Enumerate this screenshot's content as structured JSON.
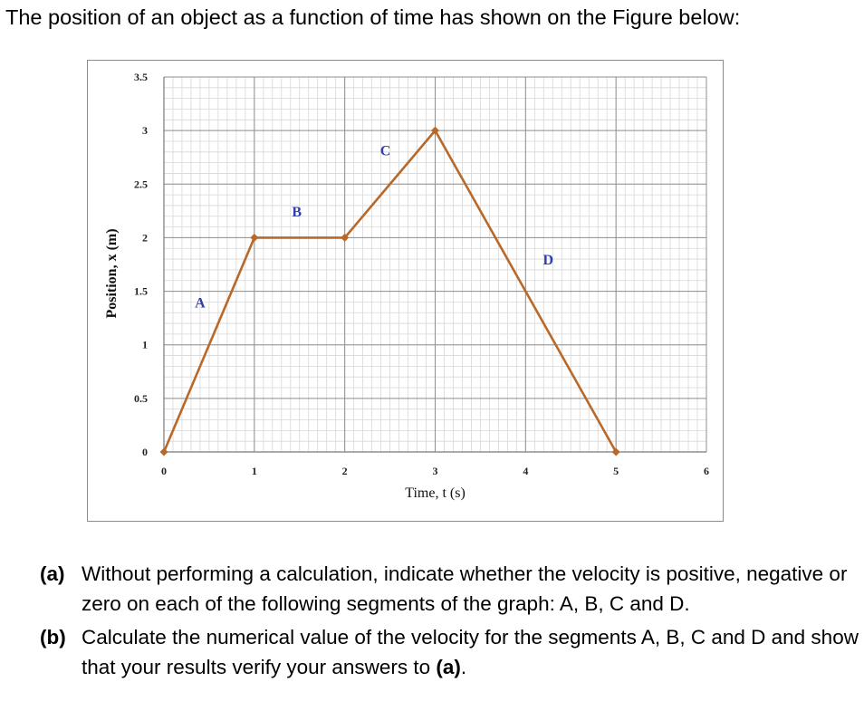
{
  "intro_text": "The position of an object as a function of time has shown on the Figure below:",
  "questions": [
    {
      "marker": "(a)",
      "text": "Without performing a calculation, indicate whether the velocity is positive, negative or zero on each of the following segments of the graph: A, B, C and D."
    },
    {
      "marker": "(b)",
      "text_before": "Calculate the numerical value of the velocity for the segments A, B, C and D and show that your results verify your answers to ",
      "text_bold": "(a)",
      "text_after": "."
    }
  ],
  "chart_data": {
    "type": "line",
    "title": "",
    "xlabel": "Time, t (s)",
    "ylabel": "Position, x (m)",
    "xlim": [
      0,
      6
    ],
    "ylim": [
      0,
      3.5
    ],
    "x_ticks": [
      0,
      1,
      2,
      3,
      4,
      5,
      6
    ],
    "y_ticks": [
      0,
      0.5,
      1,
      1.5,
      2,
      2.5,
      3,
      3.5
    ],
    "x_tick_labels": [
      "0",
      "1",
      "2",
      "3",
      "4",
      "5",
      "6"
    ],
    "y_tick_labels": [
      "0",
      "0.5",
      "1",
      "1.5",
      "2",
      "2.5",
      "3",
      "3.5"
    ],
    "grid": true,
    "legend": "none",
    "line_color": "#b8692a",
    "label_color": "#2f3fb3",
    "series": [
      {
        "x": [
          0,
          1,
          2,
          3,
          5
        ],
        "y": [
          0,
          2,
          2,
          3,
          0
        ]
      }
    ],
    "segment_labels": [
      {
        "text": "A",
        "x": 0.4,
        "y": 1.35
      },
      {
        "text": "B",
        "x": 1.47,
        "y": 2.2
      },
      {
        "text": "C",
        "x": 2.45,
        "y": 2.77
      },
      {
        "text": "D",
        "x": 4.25,
        "y": 1.75
      }
    ]
  }
}
